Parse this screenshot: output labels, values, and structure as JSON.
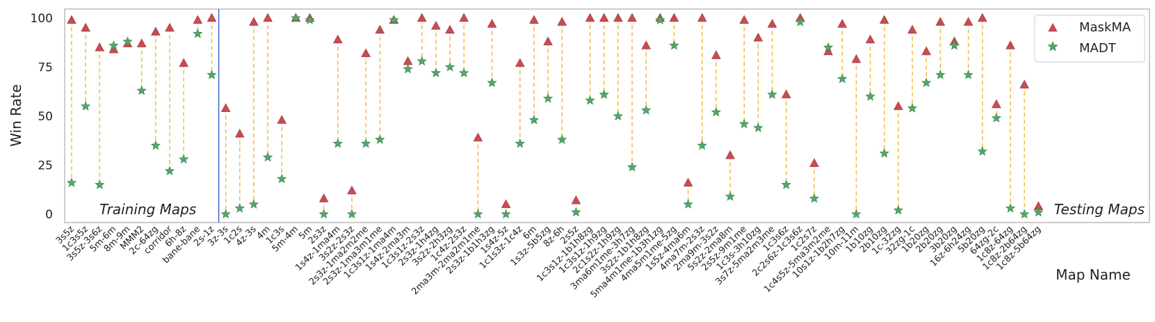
{
  "chart_data": {
    "type": "scatter",
    "ylabel": "Win Rate",
    "xlabel": "Map Name",
    "ylim": [
      -5,
      105
    ],
    "yticks": [
      0,
      25,
      50,
      75,
      100
    ],
    "grid": false,
    "legend_position": "top-right",
    "region_labels": {
      "left": "Training Maps",
      "right": "Testing Maps"
    },
    "divider_after_index": 11,
    "categories": [
      "3s5z",
      "1c3s5z",
      "3s5z-3s6z",
      "5m-6m",
      "8m-9m",
      "MMM2",
      "2c-64zg",
      "corridor",
      "6h-8z",
      "bane-bane",
      "2s-1z",
      "3z-3s",
      "1c2s",
      "4z-3s",
      "4m",
      "1c3s",
      "5m-4m",
      "5m",
      "2s3z",
      "1s4z-1ma4m",
      "3s2z-2s3z",
      "2s3z-1ma2m2me",
      "2s3z-1ma3m1me",
      "1c3s1z-1ma4m",
      "1s4z-2ma3m",
      "1c3s1z-2s3z",
      "2s3z-1h4zg",
      "3s2z-2h3zg",
      "1c4z-2s3z",
      "2ma3m-2ma2m1me",
      "2s3z-1b1h3zg",
      "1s4z-5z",
      "1c1s3z-1c4z",
      "6m",
      "1s3z-5b5zg",
      "8z-6h",
      "2s5z",
      "1c3s1z-1b1h8zg",
      "1c3s1z-1h9zg",
      "2c1s2z-1h9zg",
      "3ma6m1me-3h7zg",
      "3s2z-1b1h8zg",
      "5ma4m1me-1b3h1zg",
      "4ma5m1me-5zg",
      "1s5z-4ma6m",
      "4ma7m-2s3z",
      "2ma9m-3s2z",
      "5s2z-2ma8m",
      "2s5z-9m1me",
      "1c3s-3h10zg",
      "3s7z-5ma2m3me",
      "1c3s6z",
      "2c2s6z-1c3s6z",
      "1c2s7z",
      "1c4s5z-5ma3m2me",
      "10s1z-1b2h7zg",
      "10m-11m",
      "1b10zg",
      "2b10zg",
      "1c-32zg",
      "32zg-1c",
      "1b20zg",
      "2b20zg",
      "3b20zg",
      "16z-6h24zg",
      "5b20zg",
      "64zg-2c",
      "1c8z-64zg",
      "1c8z-2b64zg",
      "1c8z-5b64zg"
    ],
    "series": [
      {
        "name": "MaskMA",
        "marker": "triangle",
        "color": "#c44e52",
        "values": [
          99,
          95,
          85,
          84,
          87,
          87,
          93,
          95,
          77,
          99,
          100,
          54,
          41,
          98,
          100,
          48,
          100,
          100,
          8,
          89,
          12,
          82,
          94,
          99,
          78,
          100,
          96,
          94,
          100,
          39,
          97,
          5,
          77,
          99,
          88,
          98,
          7,
          100,
          100,
          100,
          100,
          86,
          100,
          100,
          16,
          100,
          81,
          30,
          99,
          90,
          97,
          61,
          100,
          26,
          83,
          97,
          79,
          89,
          99,
          55,
          94,
          83,
          98,
          88,
          98,
          100,
          56,
          86,
          66,
          4
        ]
      },
      {
        "name": "MADT",
        "marker": "star",
        "color": "#55a868",
        "values": [
          16,
          55,
          15,
          86,
          88,
          63,
          35,
          22,
          28,
          92,
          71,
          0,
          3,
          5,
          29,
          18,
          100,
          99,
          0,
          36,
          0,
          36,
          38,
          99,
          74,
          78,
          72,
          75,
          72,
          0,
          67,
          0,
          36,
          48,
          59,
          38,
          1,
          58,
          61,
          50,
          24,
          53,
          99,
          86,
          5,
          35,
          52,
          9,
          46,
          44,
          61,
          15,
          98,
          8,
          85,
          69,
          0,
          60,
          31,
          2,
          54,
          67,
          71,
          86,
          71,
          32,
          49,
          3,
          0,
          1
        ]
      }
    ]
  }
}
